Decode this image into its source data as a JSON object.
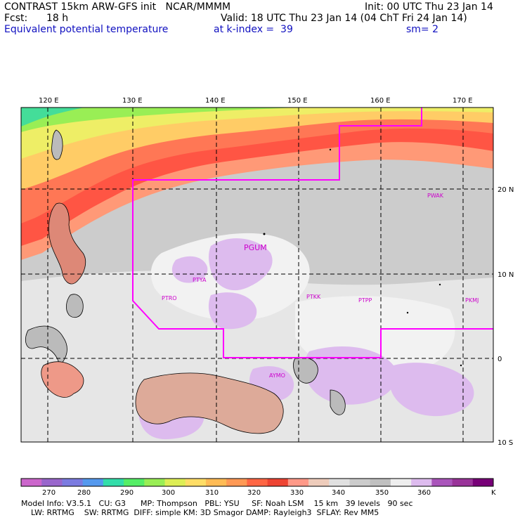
{
  "header": {
    "title_left": "CONTRAST 15km ARW-GFS init   NCAR/MMMM",
    "init": "Init: 00 UTC Thu 23 Jan 14",
    "fcst_label": "Fcst:",
    "fcst_value": "18 h",
    "valid": "Valid: 18 UTC Thu 23 Jan 14 (04 ChT Fri 24 Jan 14)",
    "field": "Equivalent potential temperature",
    "level": "at k-index =  39",
    "smooth": "sm= 2"
  },
  "map": {
    "lon_labels": [
      "120 E",
      "130 E",
      "140 E",
      "150 E",
      "160 E",
      "170 E"
    ],
    "lat_labels": [
      "20 N",
      "10 N",
      "0",
      "10 S"
    ],
    "stations": [
      "PGUM",
      "PTYA",
      "PTRO",
      "PTKK",
      "PTPP",
      "PKMJ",
      "PWAK",
      "AYMO"
    ]
  },
  "colorbar": {
    "labels": [
      "270",
      "280",
      "290",
      "300",
      "310",
      "320",
      "330",
      "340",
      "350",
      "360"
    ],
    "unit": "K",
    "colors": [
      "#cc66cc",
      "#9966cc",
      "#7b7be0",
      "#5599ee",
      "#33ddaa",
      "#55ee66",
      "#99ee55",
      "#ddee55",
      "#ffdd66",
      "#ffbb55",
      "#ff9955",
      "#ff6644",
      "#ee4433",
      "#ff9988",
      "#eeccbb",
      "#e0e0e0",
      "#cccccc",
      "#c0c0c0",
      "#eeeeee",
      "#ddbbee",
      "#aa55bb",
      "#993399",
      "#770077"
    ]
  },
  "footer": {
    "line1": "Model Info: V3.5.1   CU: G3      MP: Thompson   PBL: YSU     SF: Noah LSM    15 km   39 levels   90 sec",
    "line2": "    LW: RRTMG    SW: RRTMG  DIFF: simple KM: 3D Smagor DAMP: Rayleigh3  SFLAY: Rev MM5"
  }
}
